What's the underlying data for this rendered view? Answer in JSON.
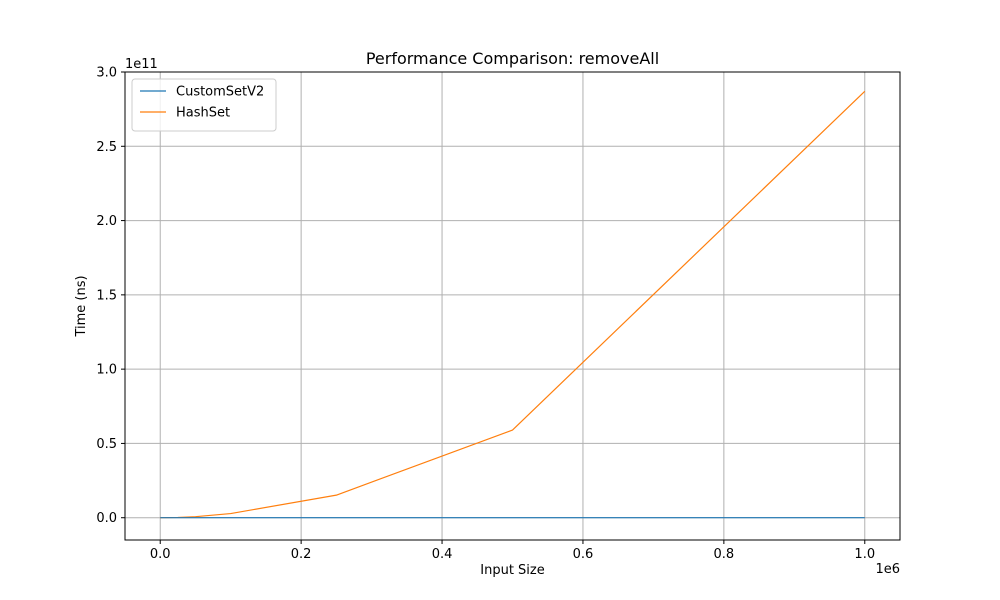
{
  "chart_data": {
    "type": "line",
    "title": "Performance Comparison: removeAll",
    "xlabel": "Input Size",
    "ylabel": "Time (ns)",
    "x_offset_label": "1e6",
    "y_offset_label": "1e11",
    "xlim": [
      -0.05,
      1.05
    ],
    "ylim": [
      -0.15,
      3.0
    ],
    "x_ticks": [
      0.0,
      0.2,
      0.4,
      0.6,
      0.8,
      1.0
    ],
    "x_tick_labels": [
      "0.0",
      "0.2",
      "0.4",
      "0.6",
      "0.8",
      "1.0"
    ],
    "y_ticks": [
      0.0,
      0.5,
      1.0,
      1.5,
      2.0,
      2.5,
      3.0
    ],
    "y_tick_labels": [
      "0.0",
      "0.5",
      "1.0",
      "1.5",
      "2.0",
      "2.5",
      "3.0"
    ],
    "grid": true,
    "legend_position": "top-left",
    "series": [
      {
        "name": "CustomSetV2",
        "color": "#1f77b4",
        "x": [
          0.0,
          0.025,
          0.05,
          0.1,
          0.25,
          0.5,
          1.0
        ],
        "y": [
          0.0,
          0.0,
          0.0,
          0.0,
          0.0,
          0.0,
          0.0
        ]
      },
      {
        "name": "HashSet",
        "color": "#ff7f0e",
        "x": [
          0.0,
          0.025,
          0.05,
          0.1,
          0.25,
          0.5,
          1.0
        ],
        "y": [
          0.0,
          0.002,
          0.007,
          0.028,
          0.152,
          0.59,
          2.87
        ]
      }
    ]
  }
}
